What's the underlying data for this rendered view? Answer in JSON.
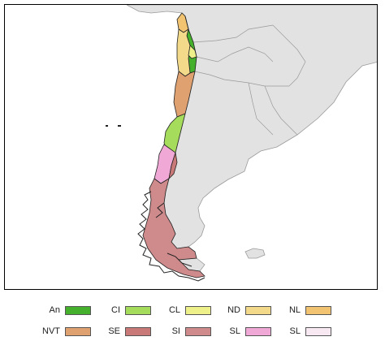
{
  "colors": {
    "ocean": "#ffffff",
    "land": "#e2e2e2",
    "land_border": "#9a9a9a",
    "region_border": "#222222"
  },
  "legend": [
    {
      "code": "An",
      "color": "#45b02c"
    },
    {
      "code": "CI",
      "color": "#a6dc5b"
    },
    {
      "code": "CL",
      "color": "#eef08a"
    },
    {
      "code": "ND",
      "color": "#f3d98a"
    },
    {
      "code": "NL",
      "color": "#f2c471"
    },
    {
      "code": "NVT",
      "color": "#e0a171"
    },
    {
      "code": "SE",
      "color": "#c97a78"
    },
    {
      "code": "SI",
      "color": "#cf8a8b"
    },
    {
      "code": "SL",
      "color": "#f0a9d6"
    },
    {
      "code": "SL",
      "color": "#f8e8f2"
    }
  ]
}
